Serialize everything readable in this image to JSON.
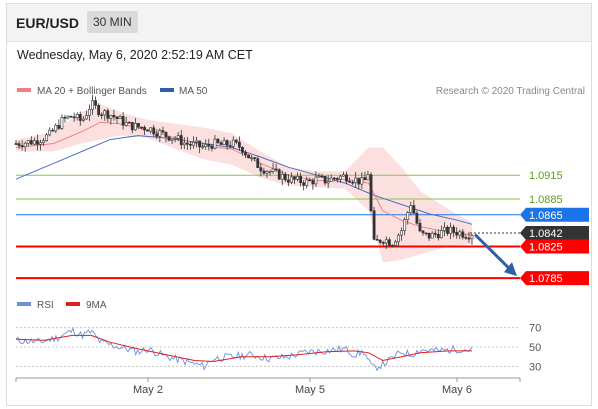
{
  "header": {
    "pair": "EUR/USD",
    "timeframe": "30 MIN"
  },
  "datetime": "Wednesday, May 6, 2020 2:52:19 AM CET",
  "legend": {
    "bb_label": "MA 20 + Bollinger Bands",
    "ma50_label": "MA 50",
    "credit": "Research © 2020 Trading Central",
    "rsi_label": "RSI",
    "ma9_label": "9MA"
  },
  "colors": {
    "candles": "#333333",
    "ma20": "#f08080",
    "bollinger_fill": "#fbd6d6",
    "ma50": "#4a6fc0",
    "support": "#ff0000",
    "pivot": "#1a73e8",
    "resistance": "#8ac34a",
    "current": "#333333",
    "arrow": "#2f5fa8",
    "rsi": "#6c8fe0",
    "rsi_ma": "#e02020"
  },
  "chart_data": [
    {
      "type": "line",
      "title": "EUR/USD 30 MIN",
      "x": [
        "May 2",
        "May 5",
        "May 6"
      ],
      "ylim": [
        1.077,
        1.101
      ],
      "series": [
        {
          "name": "MA 20 + Bollinger Bands"
        },
        {
          "name": "MA 50"
        }
      ],
      "levels": [
        {
          "label": "1.0915",
          "value": 1.0915,
          "kind": "resistance"
        },
        {
          "label": "1.0885",
          "value": 1.0885,
          "kind": "resistance"
        },
        {
          "label": "1.0865",
          "value": 1.0865,
          "kind": "pivot"
        },
        {
          "label": "1.0842",
          "value": 1.0842,
          "kind": "current"
        },
        {
          "label": "1.0825",
          "value": 1.0825,
          "kind": "support"
        },
        {
          "label": "1.0785",
          "value": 1.0785,
          "kind": "support"
        }
      ],
      "close_path": [
        [
          0,
          1.0955
        ],
        [
          4,
          1.0958
        ],
        [
          7,
          1.0965
        ],
        [
          10,
          1.0985
        ],
        [
          12,
          1.099
        ],
        [
          14,
          1.0983
        ],
        [
          16,
          1.1005
        ],
        [
          18,
          1.0995
        ],
        [
          20,
          1.0992
        ],
        [
          22,
          1.0985
        ],
        [
          24,
          1.0978
        ],
        [
          26,
          1.0976
        ],
        [
          28,
          1.0975
        ],
        [
          30,
          1.097
        ],
        [
          32,
          1.0965
        ],
        [
          34,
          1.0962
        ],
        [
          36,
          1.0955
        ],
        [
          38,
          1.0953
        ],
        [
          40,
          1.095
        ],
        [
          42,
          1.0955
        ],
        [
          44,
          1.0953
        ],
        [
          46,
          1.0955
        ],
        [
          48,
          1.095
        ],
        [
          50,
          1.0935
        ],
        [
          52,
          1.0925
        ],
        [
          54,
          1.092
        ],
        [
          56,
          1.0915
        ],
        [
          58,
          1.091
        ],
        [
          60,
          1.0908
        ],
        [
          62,
          1.0906
        ],
        [
          64,
          1.091
        ],
        [
          66,
          1.0908
        ],
        [
          68,
          1.0912
        ],
        [
          70,
          1.0914
        ],
        [
          72,
          1.091
        ],
        [
          74,
          1.0905
        ],
        [
          75,
          1.092
        ],
        [
          75.5,
          1.087
        ],
        [
          76,
          1.0828
        ],
        [
          78,
          1.0835
        ],
        [
          80,
          1.083
        ],
        [
          82,
          1.0845
        ],
        [
          84,
          1.088
        ],
        [
          85,
          1.086
        ],
        [
          86,
          1.084
        ],
        [
          88,
          1.0838
        ],
        [
          90,
          1.0842
        ],
        [
          92,
          1.0845
        ],
        [
          94,
          1.0843
        ],
        [
          96,
          1.084
        ],
        [
          97,
          1.0842
        ]
      ],
      "ma20_path": [
        [
          0,
          1.095
        ],
        [
          8,
          1.0955
        ],
        [
          14,
          1.097
        ],
        [
          18,
          1.0982
        ],
        [
          22,
          1.098
        ],
        [
          28,
          1.0972
        ],
        [
          34,
          1.0962
        ],
        [
          40,
          1.0952
        ],
        [
          46,
          1.0948
        ],
        [
          52,
          1.093
        ],
        [
          58,
          1.0915
        ],
        [
          64,
          1.0908
        ],
        [
          70,
          1.091
        ],
        [
          75,
          1.0905
        ],
        [
          78,
          1.087
        ],
        [
          82,
          1.0858
        ],
        [
          86,
          1.085
        ],
        [
          92,
          1.0843
        ],
        [
          97,
          1.084
        ]
      ],
      "bb_upper_path": [
        [
          0,
          1.096
        ],
        [
          8,
          1.097
        ],
        [
          14,
          1.0995
        ],
        [
          18,
          1.1005
        ],
        [
          22,
          1.0995
        ],
        [
          28,
          1.0985
        ],
        [
          34,
          1.098
        ],
        [
          40,
          1.0975
        ],
        [
          46,
          1.0968
        ],
        [
          52,
          1.0945
        ],
        [
          58,
          1.0925
        ],
        [
          64,
          1.092
        ],
        [
          70,
          1.092
        ],
        [
          75,
          1.095
        ],
        [
          78,
          1.095
        ],
        [
          82,
          1.0925
        ],
        [
          86,
          1.0895
        ],
        [
          92,
          1.0872
        ],
        [
          97,
          1.0855
        ]
      ],
      "bb_lower_path": [
        [
          0,
          1.0945
        ],
        [
          8,
          1.0945
        ],
        [
          14,
          1.0955
        ],
        [
          18,
          1.096
        ],
        [
          22,
          1.0965
        ],
        [
          28,
          1.0962
        ],
        [
          34,
          1.0948
        ],
        [
          40,
          1.0935
        ],
        [
          46,
          1.0928
        ],
        [
          52,
          1.0912
        ],
        [
          58,
          1.0902
        ],
        [
          64,
          1.09
        ],
        [
          70,
          1.0898
        ],
        [
          75,
          1.087
        ],
        [
          78,
          1.0805
        ],
        [
          82,
          1.0808
        ],
        [
          86,
          1.0815
        ],
        [
          92,
          1.0825
        ],
        [
          97,
          1.0828
        ]
      ],
      "ma50_path": [
        [
          0,
          1.091
        ],
        [
          10,
          1.0935
        ],
        [
          16,
          1.095
        ],
        [
          20,
          1.096
        ],
        [
          26,
          1.0965
        ],
        [
          32,
          1.0962
        ],
        [
          40,
          1.0955
        ],
        [
          46,
          1.095
        ],
        [
          52,
          1.0938
        ],
        [
          58,
          1.0925
        ],
        [
          64,
          1.0915
        ],
        [
          70,
          1.0905
        ],
        [
          76,
          1.089
        ],
        [
          82,
          1.0878
        ],
        [
          88,
          1.0866
        ],
        [
          94,
          1.0858
        ],
        [
          97,
          1.0853
        ]
      ]
    },
    {
      "type": "line",
      "title": "RSI",
      "ylim": [
        20,
        80
      ],
      "yticks": [
        "70",
        "50",
        "30"
      ],
      "series": [
        {
          "name": "RSI"
        },
        {
          "name": "9MA"
        }
      ],
      "rsi_path": [
        [
          0,
          57
        ],
        [
          5,
          55
        ],
        [
          9,
          60
        ],
        [
          12,
          67
        ],
        [
          14,
          62
        ],
        [
          16,
          66
        ],
        [
          18,
          55
        ],
        [
          22,
          50
        ],
        [
          26,
          45
        ],
        [
          28,
          48
        ],
        [
          32,
          40
        ],
        [
          36,
          35
        ],
        [
          40,
          30
        ],
        [
          42,
          38
        ],
        [
          46,
          40
        ],
        [
          50,
          42
        ],
        [
          54,
          38
        ],
        [
          58,
          40
        ],
        [
          62,
          45
        ],
        [
          66,
          46
        ],
        [
          70,
          48
        ],
        [
          72,
          42
        ],
        [
          74,
          45
        ],
        [
          75,
          35
        ],
        [
          76,
          28
        ],
        [
          78,
          32
        ],
        [
          80,
          38
        ],
        [
          82,
          45
        ],
        [
          84,
          42
        ],
        [
          86,
          47
        ],
        [
          90,
          46
        ],
        [
          94,
          48
        ],
        [
          97,
          47
        ]
      ],
      "ma_path": [
        [
          0,
          58
        ],
        [
          6,
          57
        ],
        [
          12,
          62
        ],
        [
          16,
          62
        ],
        [
          20,
          55
        ],
        [
          26,
          48
        ],
        [
          32,
          42
        ],
        [
          38,
          36
        ],
        [
          42,
          35
        ],
        [
          48,
          40
        ],
        [
          54,
          40
        ],
        [
          60,
          42
        ],
        [
          66,
          45
        ],
        [
          72,
          46
        ],
        [
          75,
          44
        ],
        [
          78,
          36
        ],
        [
          82,
          40
        ],
        [
          86,
          44
        ],
        [
          92,
          46
        ],
        [
          97,
          46
        ]
      ]
    }
  ]
}
